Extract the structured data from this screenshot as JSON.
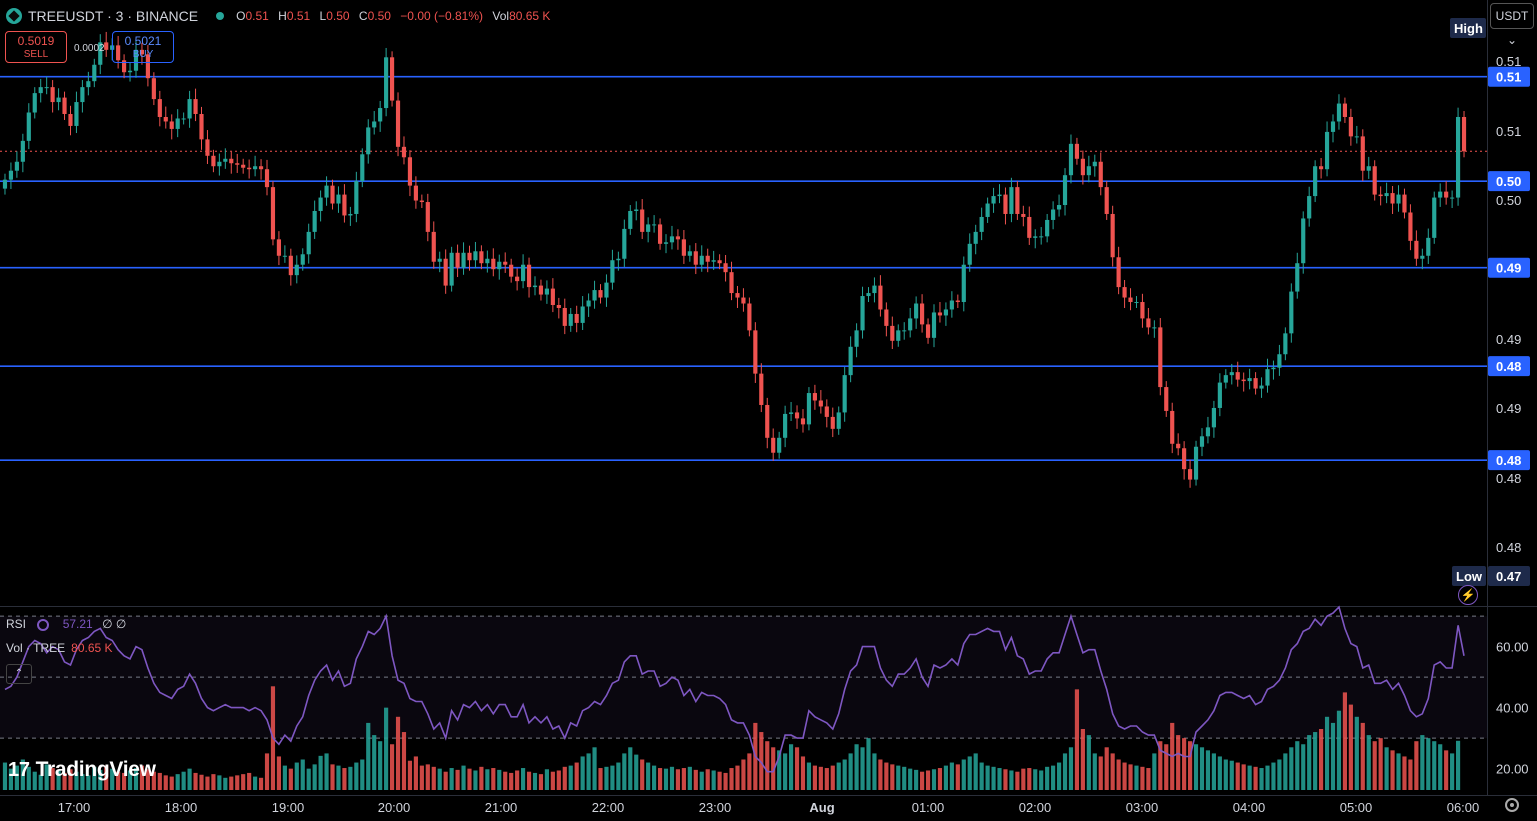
{
  "header": {
    "symbol": "TREEUSDT · 3 · BINANCE",
    "open_label": "O",
    "open": "0.51",
    "high_label": "H",
    "high": "0.51",
    "low_label": "L",
    "low": "0.50",
    "close_label": "C",
    "close": "0.50",
    "change": "−0.00 (−0.81%)",
    "vol_label": "Vol",
    "vol": "80.65 K"
  },
  "trade": {
    "sell_price": "0.5019",
    "sell_label": "SELL",
    "spread": "0.0002",
    "buy_price": "0.5021",
    "buy_label": "BUY"
  },
  "currency_button": "USDT ⌄",
  "panes": {
    "rsi_label": "RSI",
    "rsi_value": "57.21",
    "rsi_extra": "∅ ∅",
    "vol_label": "Vol · TREE",
    "vol_value": "80.65 K"
  },
  "collapse_button": "⌃",
  "branding": {
    "logo_glyph": "17",
    "name": "TradingView"
  },
  "colors": {
    "up": "#26a69a",
    "down": "#ef5350",
    "rsi": "#7e57c2",
    "hline": "#2962ff",
    "accent_tag": "#1e2a4a"
  },
  "chart_data": {
    "type": "candlestick",
    "interval_minutes": 3,
    "price_ylim": [
      0.4756,
      0.5138
    ],
    "price_ticks": [
      "0.51",
      "0.51",
      "0.50",
      "0.50",
      "0.49",
      "0.49",
      "0.48",
      "0.48",
      "0.48"
    ],
    "time_ticks": [
      "17:00",
      "18:00",
      "19:00",
      "20:00",
      "21:00",
      "22:00",
      "23:00",
      "Aug",
      "01:00",
      "02:00",
      "03:00",
      "04:00",
      "05:00",
      "06:00"
    ],
    "horizontal_lines": [
      {
        "price": 0.51,
        "label": "0.51"
      },
      {
        "price": 0.503,
        "label": "0.50"
      },
      {
        "price": 0.4972,
        "label": "0.49"
      },
      {
        "price": 0.4906,
        "label": "0.48"
      },
      {
        "price": 0.4843,
        "label": "0.48"
      }
    ],
    "high_marker": {
      "label": "High",
      "value": "0.51"
    },
    "low_marker": {
      "label": "Low",
      "value": "0.47"
    },
    "rsi_ticks": [
      "60.00",
      "40.00",
      "20.00"
    ],
    "rsi_ylim": [
      13,
      73
    ],
    "rsi_levels": [
      70,
      50,
      30
    ],
    "rsi_last": 57.21,
    "close_series": [
      0.5031,
      0.5037,
      0.5043,
      0.5057,
      0.5076,
      0.5089,
      0.5093,
      0.5093,
      0.5083,
      0.5086,
      0.5075,
      0.5067,
      0.5083,
      0.5093,
      0.5097,
      0.5108,
      0.5123,
      0.5118,
      0.5121,
      0.5111,
      0.5103,
      0.5104,
      0.5118,
      0.5115,
      0.5099,
      0.5085,
      0.5073,
      0.507,
      0.5065,
      0.5072,
      0.5072,
      0.5085,
      0.5075,
      0.5058,
      0.5047,
      0.504,
      0.5043,
      0.5045,
      0.5042,
      0.5041,
      0.5039,
      0.5038,
      0.504,
      0.5038,
      0.5026,
      0.4991,
      0.498,
      0.498,
      0.4967,
      0.4974,
      0.4981,
      0.4996,
      0.501,
      0.5019,
      0.5027,
      0.5015,
      0.5021,
      0.5007,
      0.5008,
      0.503,
      0.5048,
      0.5066,
      0.507,
      0.5079,
      0.5113,
      0.5084,
      0.5053,
      0.5046,
      0.5027,
      0.5017,
      0.5016,
      0.4996,
      0.4976,
      0.4978,
      0.496,
      0.4982,
      0.4972,
      0.4982,
      0.4977,
      0.4983,
      0.4975,
      0.4978,
      0.4971,
      0.4976,
      0.4974,
      0.4966,
      0.4963,
      0.4974,
      0.4959,
      0.496,
      0.4954,
      0.4958,
      0.4947,
      0.4945,
      0.4933,
      0.4941,
      0.4935,
      0.4946,
      0.495,
      0.4957,
      0.4952,
      0.4962,
      0.4977,
      0.4978,
      0.4998,
      0.501,
      0.5011,
      0.4996,
      0.5001,
      0.5001,
      0.4988,
      0.4989,
      0.4993,
      0.4991,
      0.498,
      0.4983,
      0.4974,
      0.498,
      0.4976,
      0.4977,
      0.4975,
      0.4969,
      0.4955,
      0.4952,
      0.4948,
      0.493,
      0.4901,
      0.488,
      0.4858,
      0.4848,
      0.4858,
      0.4874,
      0.4875,
      0.4871,
      0.4867,
      0.4888,
      0.4883,
      0.4879,
      0.4872,
      0.4864,
      0.4875,
      0.49,
      0.4919,
      0.493,
      0.4953,
      0.4955,
      0.496,
      0.4944,
      0.4933,
      0.4923,
      0.493,
      0.493,
      0.4938,
      0.4948,
      0.4934,
      0.4925,
      0.4942,
      0.494,
      0.4944,
      0.495,
      0.4949,
      0.4974,
      0.4988,
      0.4996,
      0.5006,
      0.5015,
      0.502,
      0.5021,
      0.5008,
      0.5026,
      0.5008,
      0.5006,
      0.4992,
      0.4993,
      0.4993,
      0.5004,
      0.5011,
      0.5014,
      0.5034,
      0.5055,
      0.5045,
      0.5034,
      0.504,
      0.5043,
      0.5026,
      0.5008,
      0.4979,
      0.4959,
      0.4952,
      0.4949,
      0.4949,
      0.4938,
      0.4932,
      0.4932,
      0.4892,
      0.4876,
      0.4854,
      0.4851,
      0.4837,
      0.483,
      0.4852,
      0.4859,
      0.4865,
      0.4878,
      0.4895,
      0.49,
      0.4902,
      0.4897,
      0.4896,
      0.4898,
      0.4891,
      0.4893,
      0.4904,
      0.4905,
      0.4914,
      0.4928,
      0.4956,
      0.4975,
      0.5005,
      0.502,
      0.504,
      0.5038,
      0.5063,
      0.507,
      0.5082,
      0.5073,
      0.506,
      0.506,
      0.5037,
      0.504,
      0.5021,
      0.502,
      0.5022,
      0.5015,
      0.5021,
      0.5009,
      0.499,
      0.4978,
      0.498,
      0.4992,
      0.5019,
      0.5023,
      0.5019,
      0.5019,
      0.5073,
      0.505
    ],
    "rsi_series": [
      46,
      47,
      50,
      55,
      60,
      62,
      61,
      58,
      60,
      59,
      55,
      54,
      59,
      62,
      63,
      65,
      66,
      63,
      62,
      59,
      57,
      56,
      60,
      59,
      53,
      48,
      45,
      44,
      43,
      46,
      47,
      51,
      48,
      43,
      40,
      39,
      40,
      41,
      40,
      40,
      40,
      39,
      40,
      39,
      36,
      30,
      28,
      31,
      29,
      34,
      37,
      44,
      49,
      52,
      54,
      49,
      52,
      47,
      48,
      56,
      60,
      65,
      64,
      66,
      70,
      57,
      49,
      48,
      43,
      42,
      42,
      38,
      33,
      35,
      30,
      39,
      36,
      41,
      40,
      42,
      39,
      41,
      38,
      41,
      41,
      37,
      37,
      41,
      35,
      37,
      35,
      37,
      33,
      34,
      30,
      35,
      34,
      39,
      40,
      42,
      41,
      44,
      48,
      49,
      55,
      57,
      57,
      51,
      52,
      52,
      47,
      48,
      50,
      49,
      44,
      46,
      42,
      45,
      44,
      44,
      43,
      41,
      36,
      35,
      35,
      31,
      24,
      22,
      19,
      19,
      24,
      31,
      31,
      30,
      30,
      39,
      37,
      36,
      35,
      33,
      38,
      46,
      52,
      54,
      60,
      60,
      60,
      53,
      49,
      47,
      51,
      51,
      53,
      56,
      50,
      47,
      54,
      53,
      54,
      56,
      54,
      61,
      64,
      64,
      65,
      66,
      65,
      65,
      59,
      63,
      57,
      56,
      51,
      52,
      52,
      56,
      58,
      58,
      64,
      70,
      64,
      58,
      59,
      59,
      52,
      46,
      38,
      34,
      33,
      34,
      34,
      32,
      31,
      31,
      26,
      25,
      24,
      25,
      24,
      24,
      32,
      34,
      36,
      39,
      44,
      45,
      45,
      44,
      43,
      44,
      41,
      42,
      46,
      47,
      49,
      53,
      59,
      61,
      65,
      66,
      69,
      67,
      70,
      71,
      73,
      66,
      61,
      60,
      53,
      54,
      48,
      48,
      49,
      46,
      48,
      44,
      39,
      37,
      38,
      43,
      54,
      55,
      53,
      53,
      67,
      57
    ],
    "volume_series": [
      45000,
      35000,
      40000,
      50000,
      38000,
      30000,
      25000,
      42000,
      36000,
      32000,
      28000,
      34000,
      30000,
      26000,
      24000,
      38000,
      33000,
      40000,
      35000,
      30000,
      28000,
      32000,
      36000,
      40000,
      34000,
      30000,
      28000,
      24000,
      22000,
      26000,
      30000,
      35000,
      28000,
      25000,
      22000,
      26000,
      24000,
      20000,
      22000,
      24000,
      26000,
      28000,
      22000,
      20000,
      60000,
      170000,
      55000,
      40000,
      35000,
      45000,
      50000,
      35000,
      42000,
      56000,
      60000,
      42000,
      40000,
      36000,
      38000,
      45000,
      50000,
      110000,
      90000,
      80000,
      135000,
      75000,
      120000,
      95000,
      48000,
      55000,
      40000,
      42000,
      38000,
      35000,
      30000,
      36000,
      33000,
      40000,
      35000,
      32000,
      38000,
      34000,
      36000,
      33000,
      30000,
      28000,
      32000,
      36000,
      30000,
      28000,
      26000,
      34000,
      30000,
      32000,
      38000,
      40000,
      45000,
      55000,
      60000,
      70000,
      36000,
      38000,
      40000,
      45000,
      60000,
      70000,
      58000,
      50000,
      45000,
      40000,
      36000,
      35000,
      38000,
      34000,
      36000,
      38000,
      33000,
      30000,
      34000,
      32000,
      30000,
      28000,
      36000,
      40000,
      50000,
      60000,
      110000,
      95000,
      80000,
      70000,
      65000,
      60000,
      75000,
      70000,
      55000,
      45000,
      40000,
      38000,
      36000,
      40000,
      45000,
      50000,
      60000,
      75000,
      70000,
      85000,
      60000,
      50000,
      45000,
      42000,
      40000,
      38000,
      35000,
      33000,
      30000,
      32000,
      34000,
      36000,
      40000,
      45000,
      42000,
      50000,
      55000,
      60000,
      45000,
      40000,
      38000,
      36000,
      34000,
      32000,
      30000,
      35000,
      36000,
      34000,
      32000,
      38000,
      40000,
      45000,
      60000,
      70000,
      165000,
      100000,
      90000,
      60000,
      55000,
      70000,
      60000,
      50000,
      45000,
      42000,
      40000,
      38000,
      36000,
      60000,
      80000,
      75000,
      110000,
      90000,
      85000,
      80000,
      75000,
      70000,
      65000,
      60000,
      55000,
      50000,
      48000,
      45000,
      42000,
      40000,
      38000,
      36000,
      40000,
      45000,
      50000,
      60000,
      70000,
      80000,
      75000,
      90000,
      95000,
      100000,
      120000,
      110000,
      130000,
      160000,
      140000,
      120000,
      110000,
      90000,
      80000,
      85000,
      70000,
      65000,
      60000,
      55000,
      50000,
      80000,
      90000,
      85000,
      80000,
      75000,
      65000,
      60000,
      80650
    ],
    "volume_ylim": [
      0,
      300000
    ]
  }
}
